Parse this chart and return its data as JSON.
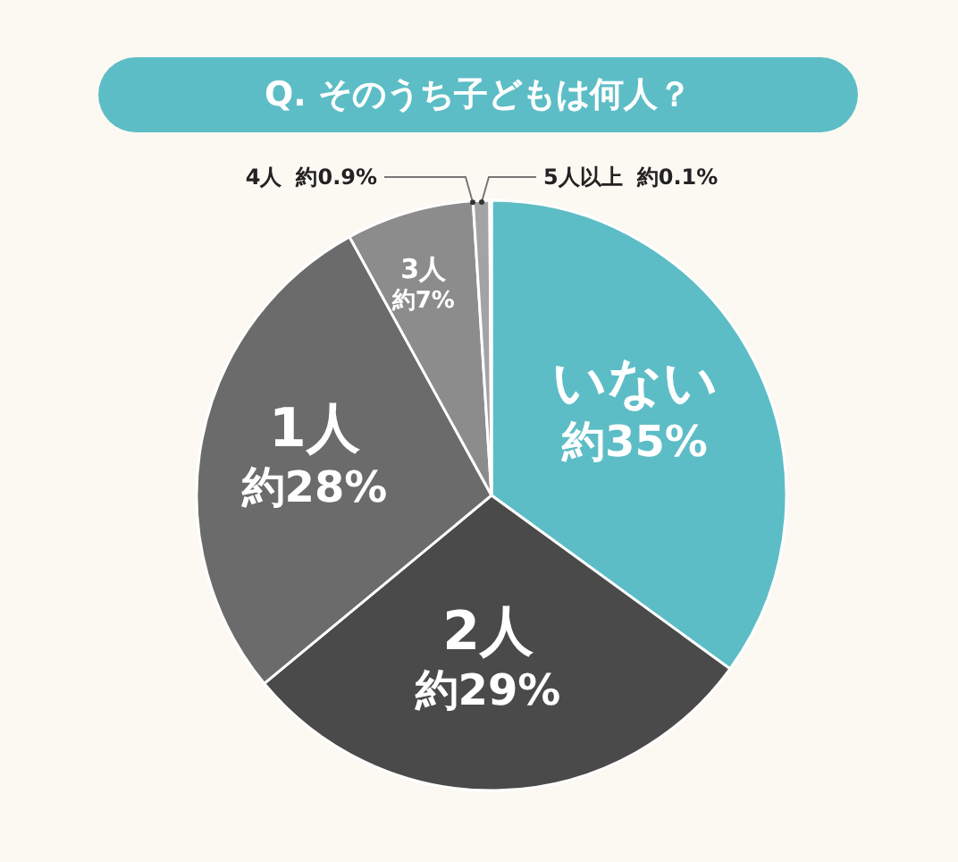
{
  "chart_data": {
    "type": "pie",
    "title": "Q. そのうち子どもは何人？",
    "categories": [
      "いない",
      "2人",
      "1人",
      "3人",
      "4人",
      "5人以上"
    ],
    "values": [
      35,
      29,
      28,
      7,
      0.9,
      0.1
    ],
    "value_labels": [
      "約35%",
      "約29%",
      "約28%",
      "約7%",
      "約0.9%",
      "約0.1%"
    ],
    "colors": [
      "#5dbdc6",
      "#4a4a4a",
      "#6b6b6b",
      "#8c8c8c",
      "#a3a3a3",
      "#d4d4d4"
    ]
  }
}
